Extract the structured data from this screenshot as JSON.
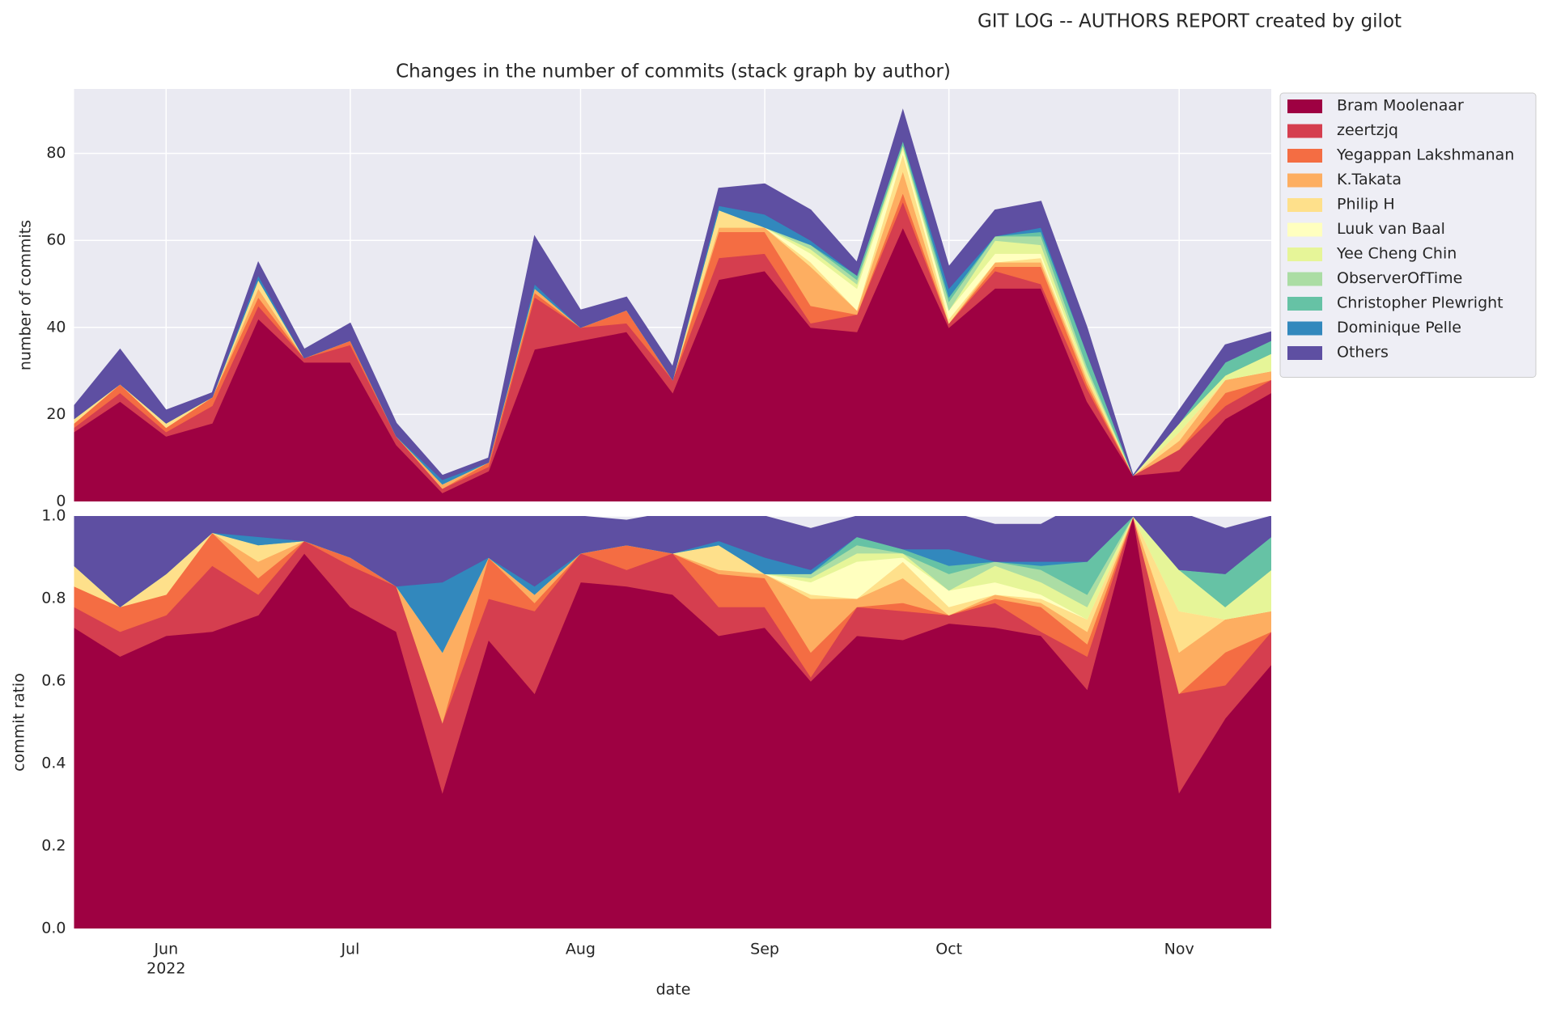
{
  "title": "GIT LOG -- AUTHORS REPORT created by gilot",
  "chart_data": [
    {
      "type": "area",
      "stacked": true,
      "title": "Changes in the number of commits (stack graph by author)",
      "ylabel": "number of commits",
      "ylim": [
        0,
        94.8
      ],
      "yticks": [
        0,
        20,
        40,
        60,
        80
      ],
      "grid": true,
      "legend": "outside upper right",
      "series": [
        {
          "name": "Bram Moolenaar",
          "color": "#9e0142",
          "values": [
            16,
            23,
            15,
            18,
            42,
            32,
            32,
            13,
            2,
            7,
            35,
            37,
            39,
            25,
            51,
            53,
            40,
            39,
            63,
            40,
            49,
            49,
            23,
            6,
            7,
            19,
            25
          ]
        },
        {
          "name": "zeertzjq",
          "color": "#d53e4f",
          "values": [
            1,
            2,
            1,
            4,
            3,
            1,
            4,
            2,
            1,
            1,
            12,
            3,
            2,
            3,
            5,
            4,
            1,
            4,
            6,
            1,
            4,
            1,
            3,
            0,
            5,
            3,
            3
          ]
        },
        {
          "name": "Yegappan Lakshmanan",
          "color": "#f46d43",
          "values": [
            1,
            2,
            1,
            2,
            2,
            0,
            1,
            0,
            0,
            1,
            1,
            0,
            3,
            0,
            6,
            5,
            4,
            0,
            2,
            0,
            1,
            4,
            1,
            0,
            0,
            3,
            0
          ]
        },
        {
          "name": "K.Takata",
          "color": "#fdae61",
          "values": [
            0,
            0,
            0,
            0,
            2,
            0,
            0,
            0,
            1,
            0,
            1,
            0,
            0,
            0,
            1,
            1,
            9,
            1,
            5,
            0,
            1,
            1,
            1,
            0,
            2,
            3,
            2
          ]
        },
        {
          "name": "Philip H",
          "color": "#fee08b",
          "values": [
            1,
            0,
            1,
            0,
            2,
            0,
            0,
            0,
            0,
            0,
            0,
            0,
            0,
            0,
            4,
            0,
            1,
            0,
            4,
            1,
            0,
            1,
            1,
            0,
            2,
            0,
            0
          ]
        },
        {
          "name": "Luuk van Baal",
          "color": "#ffffbf",
          "values": [
            0,
            0,
            0,
            0,
            0,
            0,
            0,
            0,
            0,
            0,
            0,
            0,
            0,
            0,
            0,
            0,
            2,
            5,
            1,
            2,
            2,
            1,
            0,
            0,
            0,
            0,
            0
          ]
        },
        {
          "name": "Yee Cheng Chin",
          "color": "#e6f598",
          "values": [
            0,
            0,
            0,
            0,
            0,
            0,
            0,
            0,
            0,
            0,
            0,
            0,
            0,
            0,
            0,
            0,
            1,
            1,
            1,
            0,
            3,
            2,
            1,
            0,
            2,
            1,
            4
          ]
        },
        {
          "name": "ObserverOfTime",
          "color": "#abdda4",
          "values": [
            0,
            0,
            0,
            0,
            0,
            0,
            0,
            0,
            0,
            0,
            0,
            0,
            0,
            0,
            0,
            0,
            1,
            1,
            0,
            2,
            1,
            2,
            1,
            0,
            0,
            0,
            0
          ]
        },
        {
          "name": "Christopher Plewright",
          "color": "#66c2a5",
          "values": [
            0,
            0,
            0,
            0,
            0,
            0,
            0,
            0,
            0,
            0,
            0,
            0,
            0,
            0,
            0,
            0,
            0,
            1,
            1,
            1,
            0,
            1,
            3,
            0,
            0,
            3,
            3
          ]
        },
        {
          "name": "Dominique Pelle",
          "color": "#3288bd",
          "values": [
            0,
            0,
            0,
            0,
            1,
            0,
            0,
            0,
            1,
            0,
            1,
            0,
            0,
            0,
            1,
            3,
            1,
            0,
            0,
            2,
            0,
            1,
            0,
            0,
            0,
            0,
            0
          ]
        },
        {
          "name": "Others",
          "color": "#5e4fa2",
          "values": [
            3,
            8,
            3,
            1,
            3,
            2,
            4,
            3,
            1,
            1,
            11,
            4,
            3,
            3,
            4,
            7,
            7,
            3,
            7,
            5,
            6,
            6,
            6,
            0,
            3,
            4,
            2
          ]
        }
      ]
    },
    {
      "type": "area",
      "stacked": true,
      "ylabel": "commit ratio",
      "xlabel": "date",
      "categories": [
        null,
        null,
        "Jun",
        null,
        null,
        null,
        "Jul",
        null,
        null,
        null,
        null,
        "Aug",
        null,
        null,
        null,
        "Sep",
        null,
        null,
        null,
        "Oct",
        null,
        null,
        null,
        null,
        "Nov",
        null,
        null
      ],
      "xsublabels": [
        null,
        null,
        "2022",
        null,
        null,
        null,
        null,
        null,
        null,
        null,
        null,
        null,
        null,
        null,
        null,
        null,
        null,
        null,
        null,
        null,
        null,
        null,
        null,
        null,
        null,
        null,
        null
      ],
      "ylim": [
        0,
        1
      ],
      "yticks": [
        {
          "value": 0,
          "label": "0.0"
        },
        0.2,
        0.4,
        0.6,
        0.8,
        {
          "value": 1,
          "label": "1.0"
        }
      ],
      "grid": true,
      "series": [
        {
          "color": "#9e0142",
          "values": [
            0.73,
            0.66,
            0.71,
            0.72,
            0.76,
            0.91,
            0.78,
            0.72,
            0.33,
            0.7,
            0.57,
            0.84,
            0.83,
            0.81,
            0.71,
            0.73,
            0.6,
            0.71,
            0.7,
            0.74,
            0.73,
            0.71,
            0.58,
            1,
            0.33,
            0.51,
            0.64
          ]
        },
        {
          "color": "#d53e4f",
          "values": [
            0.05,
            0.06,
            0.05,
            0.16,
            0.05,
            0.03,
            0.1,
            0.11,
            0.17,
            0.1,
            0.2,
            0.07,
            0.04,
            0.1,
            0.07,
            0.05,
            0.01,
            0.07,
            0.07,
            0.02,
            0.06,
            0.01,
            0.08,
            0,
            0.24,
            0.08,
            0.08
          ]
        },
        {
          "color": "#f46d43",
          "values": [
            0.05,
            0.06,
            0.05,
            0.08,
            0.04,
            0,
            0.02,
            0,
            0,
            0.1,
            0.02,
            0,
            0.06,
            0,
            0.08,
            0.07,
            0.06,
            0,
            0.02,
            0,
            0.01,
            0.06,
            0.03,
            0,
            0,
            0.08,
            0
          ]
        },
        {
          "color": "#fdae61",
          "values": [
            0,
            0,
            0,
            0,
            0.04,
            0,
            0,
            0,
            0.17,
            0,
            0.02,
            0,
            0,
            0,
            0.01,
            0.01,
            0.13,
            0.02,
            0.06,
            0,
            0.01,
            0.01,
            0.03,
            0,
            0.1,
            0.08,
            0.05
          ]
        },
        {
          "color": "#fee08b",
          "values": [
            0.05,
            0,
            0.05,
            0,
            0.04,
            0,
            0,
            0,
            0,
            0,
            0,
            0,
            0,
            0,
            0.06,
            0,
            0.01,
            0,
            0.04,
            0.02,
            0,
            0.01,
            0.03,
            0,
            0.1,
            0,
            0
          ]
        },
        {
          "color": "#ffffbf",
          "values": [
            0,
            0,
            0,
            0,
            0,
            0,
            0,
            0,
            0,
            0,
            0,
            0,
            0,
            0,
            0,
            0,
            0.03,
            0.09,
            0.01,
            0.04,
            0.03,
            0.01,
            0,
            0,
            0,
            0,
            0
          ]
        },
        {
          "color": "#e6f598",
          "values": [
            0,
            0,
            0,
            0,
            0,
            0,
            0,
            0,
            0,
            0,
            0,
            0,
            0,
            0,
            0,
            0,
            0.01,
            0.02,
            0.01,
            0,
            0.04,
            0.03,
            0.03,
            0,
            0.1,
            0.03,
            0.1
          ]
        },
        {
          "color": "#abdda4",
          "values": [
            0,
            0,
            0,
            0,
            0,
            0,
            0,
            0,
            0,
            0,
            0,
            0,
            0,
            0,
            0,
            0,
            0.01,
            0.02,
            0,
            0.04,
            0.01,
            0.03,
            0.03,
            0,
            0,
            0,
            0
          ]
        },
        {
          "color": "#66c2a5",
          "values": [
            0,
            0,
            0,
            0,
            0,
            0,
            0,
            0,
            0,
            0,
            0,
            0,
            0,
            0,
            0,
            0,
            0,
            0.02,
            0.01,
            0.02,
            0,
            0.01,
            0.08,
            0,
            0,
            0.08,
            0.08
          ]
        },
        {
          "color": "#3288bd",
          "values": [
            0,
            0,
            0,
            0,
            0.02,
            0,
            0,
            0,
            0.17,
            0,
            0.02,
            0,
            0,
            0,
            0.01,
            0.04,
            0.01,
            0,
            0,
            0.04,
            0,
            0.01,
            0,
            0,
            0,
            0,
            0
          ]
        },
        {
          "color": "#5e4fa2",
          "values": [
            0.14,
            0.23,
            0.14,
            0.04,
            0.05,
            0.06,
            0.1,
            0.17,
            0.17,
            0.1,
            0.18,
            0.09,
            0.06,
            0.1,
            0.06,
            0.1,
            0.1,
            0.05,
            0.08,
            0.09,
            0.09,
            0.09,
            0.15,
            0,
            0.14,
            0.11,
            0.05
          ]
        }
      ]
    }
  ]
}
